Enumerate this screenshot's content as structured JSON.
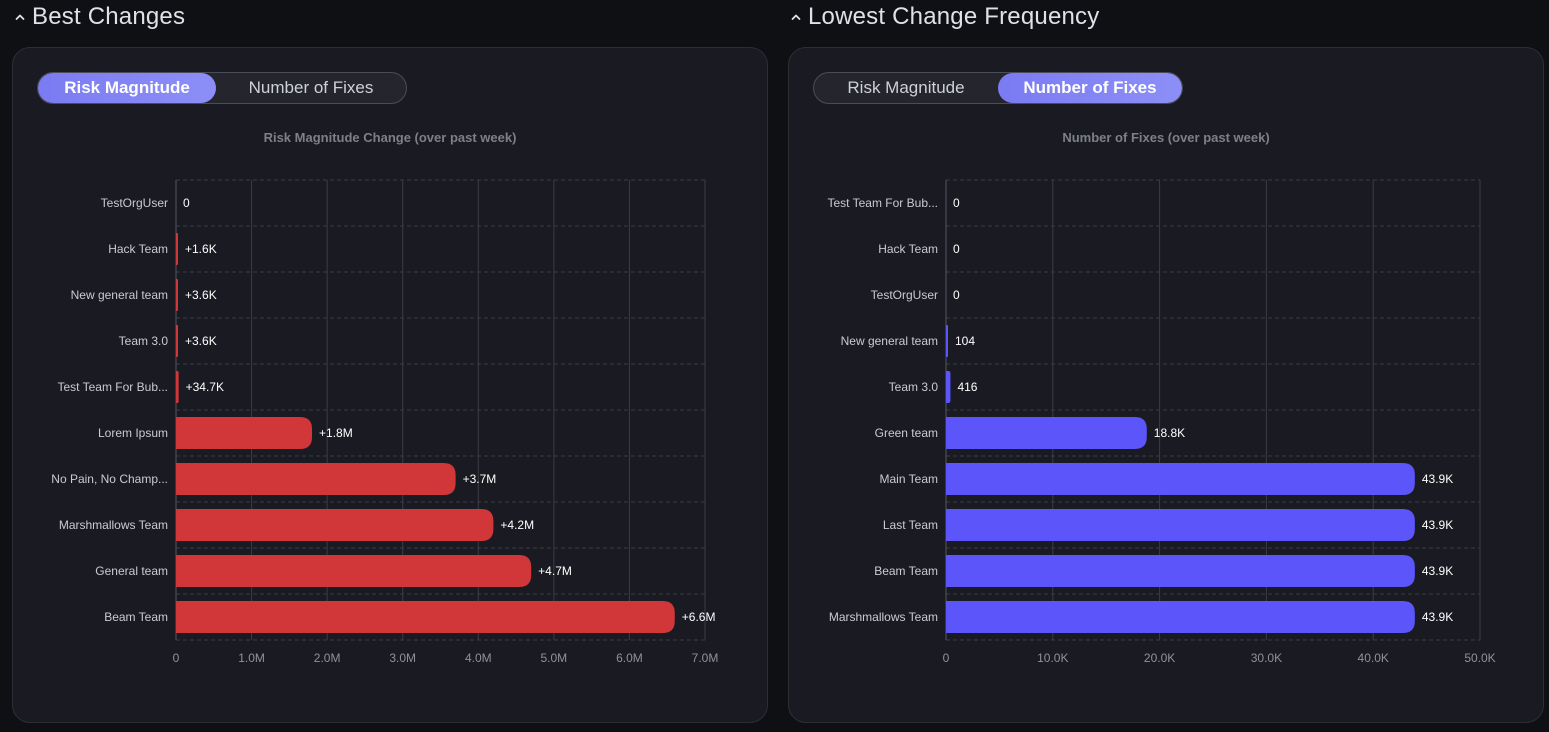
{
  "left": {
    "title": "Best Changes",
    "toggle": {
      "option1": "Risk Magnitude",
      "option2": "Number of Fixes",
      "active": 0
    },
    "chart_title": "Risk Magnitude Change (over past week)",
    "bar_color": "#d13639"
  },
  "right": {
    "title": "Lowest Change Frequency",
    "toggle": {
      "option1": "Risk Magnitude",
      "option2": "Number of Fixes",
      "active": 1
    },
    "chart_title": "Number of Fixes (over past week)",
    "bar_color": "#5b55fa"
  },
  "chart_data": [
    {
      "type": "bar",
      "orientation": "horizontal",
      "title": "Risk Magnitude Change (over past week)",
      "categories": [
        "TestOrgUser",
        "Hack Team",
        "New general team",
        "Team 3.0",
        "Test Team For Bub...",
        "Lorem Ipsum",
        "No Pain, No Champ...",
        "Marshmallows Team",
        "General team",
        "Beam Team"
      ],
      "values": [
        0,
        1600,
        3600,
        3600,
        34700,
        1800000,
        3700000,
        4200000,
        4700000,
        6600000
      ],
      "labels": [
        "0",
        "+1.6K",
        "+3.6K",
        "+3.6K",
        "+34.7K",
        "+1.8M",
        "+3.7M",
        "+4.2M",
        "+4.7M",
        "+6.6M"
      ],
      "xlim": [
        0,
        7000000
      ],
      "ticks": [
        0,
        1000000,
        2000000,
        3000000,
        4000000,
        5000000,
        6000000,
        7000000
      ],
      "tick_labels": [
        "0",
        "1.0M",
        "2.0M",
        "3.0M",
        "4.0M",
        "5.0M",
        "6.0M",
        "7.0M"
      ],
      "grid": true
    },
    {
      "type": "bar",
      "orientation": "horizontal",
      "title": "Number of Fixes (over past week)",
      "categories": [
        "Test Team For Bub...",
        "Hack Team",
        "TestOrgUser",
        "New general team",
        "Team 3.0",
        "Green team",
        "Main Team",
        "Last Team",
        "Beam Team",
        "Marshmallows Team"
      ],
      "values": [
        0,
        0,
        0,
        104,
        416,
        18800,
        43900,
        43900,
        43900,
        43900
      ],
      "labels": [
        "0",
        "0",
        "0",
        "104",
        "416",
        "18.8K",
        "43.9K",
        "43.9K",
        "43.9K",
        "43.9K"
      ],
      "xlim": [
        0,
        50000
      ],
      "ticks": [
        0,
        10000,
        20000,
        30000,
        40000,
        50000
      ],
      "tick_labels": [
        "0",
        "10.0K",
        "20.0K",
        "30.0K",
        "40.0K",
        "50.0K"
      ],
      "grid": true
    }
  ]
}
